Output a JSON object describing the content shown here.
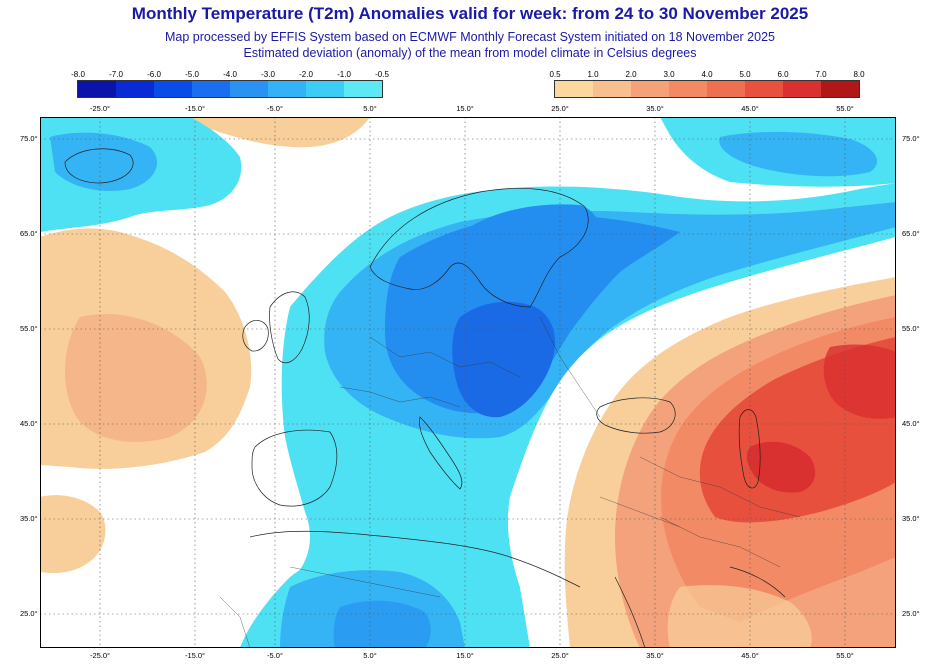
{
  "header": {
    "title": "Monthly Temperature (T2m) Anomalies valid for week: from 24 to 30 November 2025",
    "subtitle1": "Map processed by EFFIS System based on ECMWF Monthly Forecast System initiated on 18 November 2025",
    "subtitle2": "Estimated deviation (anomaly) of the mean from model climate in Celsius degrees"
  },
  "legend_cold": {
    "ticks": [
      "-8.0",
      "-7.0",
      "-6.0",
      "-5.0",
      "-4.0",
      "-3.0",
      "-2.0",
      "-1.0",
      "-0.5"
    ],
    "colors": [
      "#0a14a8",
      "#0a2ad6",
      "#0a4ce8",
      "#1a6ff0",
      "#2a92f2",
      "#34b2f6",
      "#3ccdf6",
      "#5ee8f6"
    ]
  },
  "legend_warm": {
    "ticks": [
      "0.5",
      "1.0",
      "2.0",
      "3.0",
      "4.0",
      "5.0",
      "6.0",
      "7.0",
      "8.0"
    ],
    "colors": [
      "#fbd8a0",
      "#f8c090",
      "#f5a27a",
      "#f28a66",
      "#ee6f52",
      "#e85040",
      "#d93030",
      "#b01818"
    ]
  },
  "axes": {
    "lon_labels_top": [
      "-25.0°",
      "-15.0°",
      "-5.0°",
      "5.0°",
      "15.0°",
      "25.0°",
      "35.0°",
      "45.0°",
      "55.0°"
    ],
    "lon_labels_bottom": [
      "-25.0°",
      "-15.0°",
      "-5.0°",
      "5.0°",
      "15.0°",
      "25.0°",
      "35.0°",
      "45.0°",
      "55.0°"
    ],
    "lat_labels_left": [
      "75.0°",
      "65.0°",
      "55.0°",
      "45.0°",
      "35.0°",
      "25.0°"
    ],
    "lat_labels_right": [
      "75.0°",
      "65.0°",
      "55.0°",
      "45.0°",
      "35.0°",
      "25.0°"
    ]
  },
  "map_colors": {
    "ocean_white": "#ffffff",
    "light_orange": "#f8cf9a",
    "salmon": "#f3a27c",
    "deep_red": "#e8503e",
    "cyan": "#4ee1f4",
    "light_blue": "#34b4f4",
    "mid_blue": "#248ef0",
    "deep_blue": "#1a6ae6"
  }
}
